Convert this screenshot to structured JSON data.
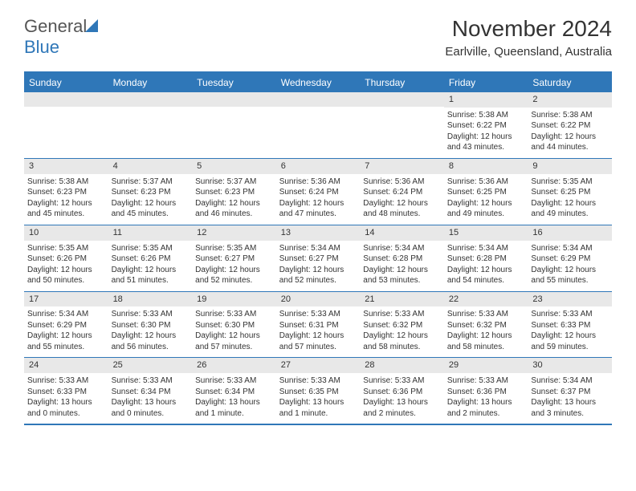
{
  "logo": {
    "text1": "General",
    "text2": "Blue"
  },
  "title": "November 2024",
  "location": "Earlville, Queensland, Australia",
  "colors": {
    "accent": "#2f77b8",
    "day_bar": "#e8e8e8",
    "text": "#333333",
    "background": "#ffffff"
  },
  "weekdays": [
    "Sunday",
    "Monday",
    "Tuesday",
    "Wednesday",
    "Thursday",
    "Friday",
    "Saturday"
  ],
  "weeks": [
    [
      null,
      null,
      null,
      null,
      null,
      {
        "n": "1",
        "sr": "5:38 AM",
        "ss": "6:22 PM",
        "dl": "12 hours and 43 minutes."
      },
      {
        "n": "2",
        "sr": "5:38 AM",
        "ss": "6:22 PM",
        "dl": "12 hours and 44 minutes."
      }
    ],
    [
      {
        "n": "3",
        "sr": "5:38 AM",
        "ss": "6:23 PM",
        "dl": "12 hours and 45 minutes."
      },
      {
        "n": "4",
        "sr": "5:37 AM",
        "ss": "6:23 PM",
        "dl": "12 hours and 45 minutes."
      },
      {
        "n": "5",
        "sr": "5:37 AM",
        "ss": "6:23 PM",
        "dl": "12 hours and 46 minutes."
      },
      {
        "n": "6",
        "sr": "5:36 AM",
        "ss": "6:24 PM",
        "dl": "12 hours and 47 minutes."
      },
      {
        "n": "7",
        "sr": "5:36 AM",
        "ss": "6:24 PM",
        "dl": "12 hours and 48 minutes."
      },
      {
        "n": "8",
        "sr": "5:36 AM",
        "ss": "6:25 PM",
        "dl": "12 hours and 49 minutes."
      },
      {
        "n": "9",
        "sr": "5:35 AM",
        "ss": "6:25 PM",
        "dl": "12 hours and 49 minutes."
      }
    ],
    [
      {
        "n": "10",
        "sr": "5:35 AM",
        "ss": "6:26 PM",
        "dl": "12 hours and 50 minutes."
      },
      {
        "n": "11",
        "sr": "5:35 AM",
        "ss": "6:26 PM",
        "dl": "12 hours and 51 minutes."
      },
      {
        "n": "12",
        "sr": "5:35 AM",
        "ss": "6:27 PM",
        "dl": "12 hours and 52 minutes."
      },
      {
        "n": "13",
        "sr": "5:34 AM",
        "ss": "6:27 PM",
        "dl": "12 hours and 52 minutes."
      },
      {
        "n": "14",
        "sr": "5:34 AM",
        "ss": "6:28 PM",
        "dl": "12 hours and 53 minutes."
      },
      {
        "n": "15",
        "sr": "5:34 AM",
        "ss": "6:28 PM",
        "dl": "12 hours and 54 minutes."
      },
      {
        "n": "16",
        "sr": "5:34 AM",
        "ss": "6:29 PM",
        "dl": "12 hours and 55 minutes."
      }
    ],
    [
      {
        "n": "17",
        "sr": "5:34 AM",
        "ss": "6:29 PM",
        "dl": "12 hours and 55 minutes."
      },
      {
        "n": "18",
        "sr": "5:33 AM",
        "ss": "6:30 PM",
        "dl": "12 hours and 56 minutes."
      },
      {
        "n": "19",
        "sr": "5:33 AM",
        "ss": "6:30 PM",
        "dl": "12 hours and 57 minutes."
      },
      {
        "n": "20",
        "sr": "5:33 AM",
        "ss": "6:31 PM",
        "dl": "12 hours and 57 minutes."
      },
      {
        "n": "21",
        "sr": "5:33 AM",
        "ss": "6:32 PM",
        "dl": "12 hours and 58 minutes."
      },
      {
        "n": "22",
        "sr": "5:33 AM",
        "ss": "6:32 PM",
        "dl": "12 hours and 58 minutes."
      },
      {
        "n": "23",
        "sr": "5:33 AM",
        "ss": "6:33 PM",
        "dl": "12 hours and 59 minutes."
      }
    ],
    [
      {
        "n": "24",
        "sr": "5:33 AM",
        "ss": "6:33 PM",
        "dl": "13 hours and 0 minutes."
      },
      {
        "n": "25",
        "sr": "5:33 AM",
        "ss": "6:34 PM",
        "dl": "13 hours and 0 minutes."
      },
      {
        "n": "26",
        "sr": "5:33 AM",
        "ss": "6:34 PM",
        "dl": "13 hours and 1 minute."
      },
      {
        "n": "27",
        "sr": "5:33 AM",
        "ss": "6:35 PM",
        "dl": "13 hours and 1 minute."
      },
      {
        "n": "28",
        "sr": "5:33 AM",
        "ss": "6:36 PM",
        "dl": "13 hours and 2 minutes."
      },
      {
        "n": "29",
        "sr": "5:33 AM",
        "ss": "6:36 PM",
        "dl": "13 hours and 2 minutes."
      },
      {
        "n": "30",
        "sr": "5:34 AM",
        "ss": "6:37 PM",
        "dl": "13 hours and 3 minutes."
      }
    ]
  ],
  "labels": {
    "sunrise": "Sunrise:",
    "sunset": "Sunset:",
    "daylight": "Daylight:"
  }
}
